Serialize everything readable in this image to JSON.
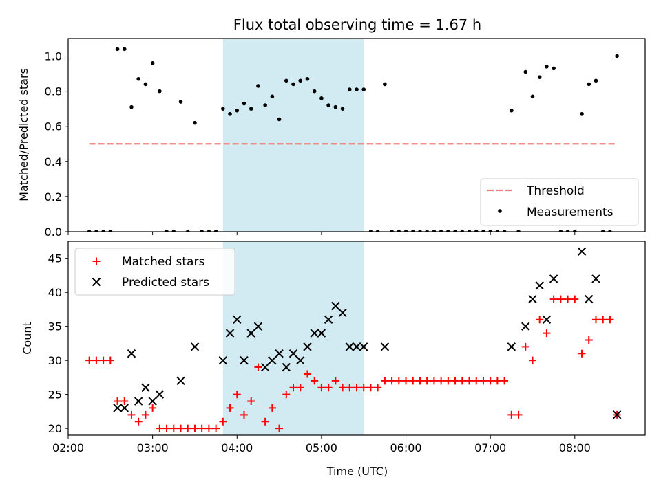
{
  "chart_data": [
    {
      "type": "scatter",
      "title": "Flux total observing time = 1.67 h",
      "xlabel": "",
      "ylabel": "Matched/Predicted stars",
      "ylim": [
        0,
        1.1
      ],
      "yticks": [
        "0.0",
        "0.2",
        "0.4",
        "0.6",
        "0.8",
        "1.0"
      ],
      "xlim": [
        "02:00",
        "08:50"
      ],
      "shaded_interval": [
        "03:50",
        "05:30"
      ],
      "shade_color": "#add8e6",
      "legend": {
        "placement": "bottom-right",
        "entries": [
          "Threshold",
          "Measurements"
        ]
      },
      "threshold": {
        "name": "Threshold",
        "y": 0.5,
        "x_range": [
          "02:15",
          "08:30"
        ],
        "color": "#f08080",
        "style": "dashed"
      },
      "series": [
        {
          "name": "Measurements",
          "marker": "dot",
          "color": "#000000",
          "points": [
            [
              "02:15",
              0
            ],
            [
              "02:20",
              0
            ],
            [
              "02:25",
              0
            ],
            [
              "02:30",
              0
            ],
            [
              "02:35",
              1.04
            ],
            [
              "02:40",
              1.04
            ],
            [
              "02:45",
              0.71
            ],
            [
              "02:50",
              0.87
            ],
            [
              "02:55",
              0.84
            ],
            [
              "03:00",
              0.96
            ],
            [
              "03:05",
              0.8
            ],
            [
              "03:10",
              0
            ],
            [
              "03:15",
              0
            ],
            [
              "03:20",
              0.74
            ],
            [
              "03:25",
              0
            ],
            [
              "03:30",
              0.62
            ],
            [
              "03:35",
              0
            ],
            [
              "03:40",
              0
            ],
            [
              "03:45",
              0
            ],
            [
              "03:50",
              0.7
            ],
            [
              "03:55",
              0.67
            ],
            [
              "04:00",
              0.69
            ],
            [
              "04:05",
              0.73
            ],
            [
              "04:10",
              0.7
            ],
            [
              "04:15",
              0.83
            ],
            [
              "04:20",
              0.72
            ],
            [
              "04:25",
              0.77
            ],
            [
              "04:30",
              0.64
            ],
            [
              "04:35",
              0.86
            ],
            [
              "04:40",
              0.84
            ],
            [
              "04:45",
              0.86
            ],
            [
              "04:50",
              0.87
            ],
            [
              "04:55",
              0.8
            ],
            [
              "05:00",
              0.76
            ],
            [
              "05:05",
              0.72
            ],
            [
              "05:10",
              0.71
            ],
            [
              "05:15",
              0.7
            ],
            [
              "05:20",
              0.81
            ],
            [
              "05:25",
              0.81
            ],
            [
              "05:30",
              0.81
            ],
            [
              "05:35",
              0
            ],
            [
              "05:40",
              0
            ],
            [
              "05:45",
              0.84
            ],
            [
              "05:50",
              0
            ],
            [
              "05:55",
              0
            ],
            [
              "06:00",
              0
            ],
            [
              "06:05",
              0
            ],
            [
              "06:10",
              0
            ],
            [
              "06:15",
              0
            ],
            [
              "06:20",
              0
            ],
            [
              "06:25",
              0
            ],
            [
              "06:30",
              0
            ],
            [
              "06:35",
              0
            ],
            [
              "06:40",
              0
            ],
            [
              "06:45",
              0
            ],
            [
              "06:50",
              0
            ],
            [
              "06:55",
              0
            ],
            [
              "07:00",
              0
            ],
            [
              "07:05",
              0
            ],
            [
              "07:10",
              0
            ],
            [
              "07:15",
              0.69
            ],
            [
              "07:20",
              0
            ],
            [
              "07:25",
              0.91
            ],
            [
              "07:30",
              0.77
            ],
            [
              "07:35",
              0.88
            ],
            [
              "07:40",
              0.94
            ],
            [
              "07:45",
              0.93
            ],
            [
              "07:50",
              0
            ],
            [
              "07:55",
              0
            ],
            [
              "08:00",
              0
            ],
            [
              "08:05",
              0.67
            ],
            [
              "08:10",
              0.84
            ],
            [
              "08:15",
              0.86
            ],
            [
              "08:20",
              0
            ],
            [
              "08:25",
              0
            ],
            [
              "08:30",
              1.0
            ]
          ]
        }
      ]
    },
    {
      "type": "scatter",
      "title": "",
      "xlabel": "Time (UTC)",
      "ylabel": "Count",
      "ylim": [
        19,
        47.5
      ],
      "yticks": [
        "20",
        "25",
        "30",
        "35",
        "40",
        "45"
      ],
      "xlim": [
        "02:00",
        "08:50"
      ],
      "xticks": [
        "02:00",
        "03:00",
        "04:00",
        "05:00",
        "06:00",
        "07:00",
        "08:00"
      ],
      "shaded_interval": [
        "03:50",
        "05:30"
      ],
      "shade_color": "#add8e6",
      "legend": {
        "placement": "top-left",
        "entries": [
          "Matched stars",
          "Predicted stars"
        ]
      },
      "series": [
        {
          "name": "Matched stars",
          "marker": "plus",
          "color": "#ff0000",
          "points": [
            [
              "02:15",
              30
            ],
            [
              "02:20",
              30
            ],
            [
              "02:25",
              30
            ],
            [
              "02:30",
              30
            ],
            [
              "02:35",
              24
            ],
            [
              "02:40",
              24
            ],
            [
              "02:45",
              22
            ],
            [
              "02:50",
              21
            ],
            [
              "02:55",
              22
            ],
            [
              "03:00",
              23
            ],
            [
              "03:05",
              20
            ],
            [
              "03:10",
              20
            ],
            [
              "03:15",
              20
            ],
            [
              "03:20",
              20
            ],
            [
              "03:25",
              20
            ],
            [
              "03:30",
              20
            ],
            [
              "03:35",
              20
            ],
            [
              "03:40",
              20
            ],
            [
              "03:45",
              20
            ],
            [
              "03:50",
              21
            ],
            [
              "03:55",
              23
            ],
            [
              "04:00",
              25
            ],
            [
              "04:05",
              22
            ],
            [
              "04:10",
              24
            ],
            [
              "04:15",
              29
            ],
            [
              "04:20",
              21
            ],
            [
              "04:25",
              23
            ],
            [
              "04:30",
              20
            ],
            [
              "04:35",
              25
            ],
            [
              "04:40",
              26
            ],
            [
              "04:45",
              26
            ],
            [
              "04:50",
              28
            ],
            [
              "04:55",
              27
            ],
            [
              "05:00",
              26
            ],
            [
              "05:05",
              26
            ],
            [
              "05:10",
              27
            ],
            [
              "05:15",
              26
            ],
            [
              "05:20",
              26
            ],
            [
              "05:25",
              26
            ],
            [
              "05:30",
              26
            ],
            [
              "05:35",
              26
            ],
            [
              "05:40",
              26
            ],
            [
              "05:45",
              27
            ],
            [
              "05:50",
              27
            ],
            [
              "05:55",
              27
            ],
            [
              "06:00",
              27
            ],
            [
              "06:05",
              27
            ],
            [
              "06:10",
              27
            ],
            [
              "06:15",
              27
            ],
            [
              "06:20",
              27
            ],
            [
              "06:25",
              27
            ],
            [
              "06:30",
              27
            ],
            [
              "06:35",
              27
            ],
            [
              "06:40",
              27
            ],
            [
              "06:45",
              27
            ],
            [
              "06:50",
              27
            ],
            [
              "06:55",
              27
            ],
            [
              "07:00",
              27
            ],
            [
              "07:05",
              27
            ],
            [
              "07:10",
              27
            ],
            [
              "07:15",
              22
            ],
            [
              "07:20",
              22
            ],
            [
              "07:25",
              32
            ],
            [
              "07:30",
              30
            ],
            [
              "07:35",
              36
            ],
            [
              "07:40",
              34
            ],
            [
              "07:45",
              39
            ],
            [
              "07:50",
              39
            ],
            [
              "07:55",
              39
            ],
            [
              "08:00",
              39
            ],
            [
              "08:05",
              31
            ],
            [
              "08:10",
              33
            ],
            [
              "08:15",
              36
            ],
            [
              "08:20",
              36
            ],
            [
              "08:25",
              36
            ],
            [
              "08:30",
              22
            ]
          ]
        },
        {
          "name": "Predicted stars",
          "marker": "x",
          "color": "#000000",
          "points": [
            [
              "02:35",
              23
            ],
            [
              "02:40",
              23
            ],
            [
              "02:45",
              31
            ],
            [
              "02:50",
              24
            ],
            [
              "02:55",
              26
            ],
            [
              "03:00",
              24
            ],
            [
              "03:05",
              25
            ],
            [
              "03:20",
              27
            ],
            [
              "03:30",
              32
            ],
            [
              "03:50",
              30
            ],
            [
              "03:55",
              34
            ],
            [
              "04:00",
              36
            ],
            [
              "04:05",
              30
            ],
            [
              "04:10",
              34
            ],
            [
              "04:15",
              35
            ],
            [
              "04:20",
              29
            ],
            [
              "04:25",
              30
            ],
            [
              "04:30",
              31
            ],
            [
              "04:35",
              29
            ],
            [
              "04:40",
              31
            ],
            [
              "04:45",
              30
            ],
            [
              "04:50",
              32
            ],
            [
              "04:55",
              34
            ],
            [
              "05:00",
              34
            ],
            [
              "05:05",
              36
            ],
            [
              "05:10",
              38
            ],
            [
              "05:15",
              37
            ],
            [
              "05:20",
              32
            ],
            [
              "05:25",
              32
            ],
            [
              "05:30",
              32
            ],
            [
              "05:45",
              32
            ],
            [
              "07:15",
              32
            ],
            [
              "07:25",
              35
            ],
            [
              "07:30",
              39
            ],
            [
              "07:35",
              41
            ],
            [
              "07:40",
              36
            ],
            [
              "07:45",
              42
            ],
            [
              "08:05",
              46
            ],
            [
              "08:10",
              39
            ],
            [
              "08:15",
              42
            ],
            [
              "08:30",
              22
            ]
          ]
        }
      ]
    }
  ]
}
